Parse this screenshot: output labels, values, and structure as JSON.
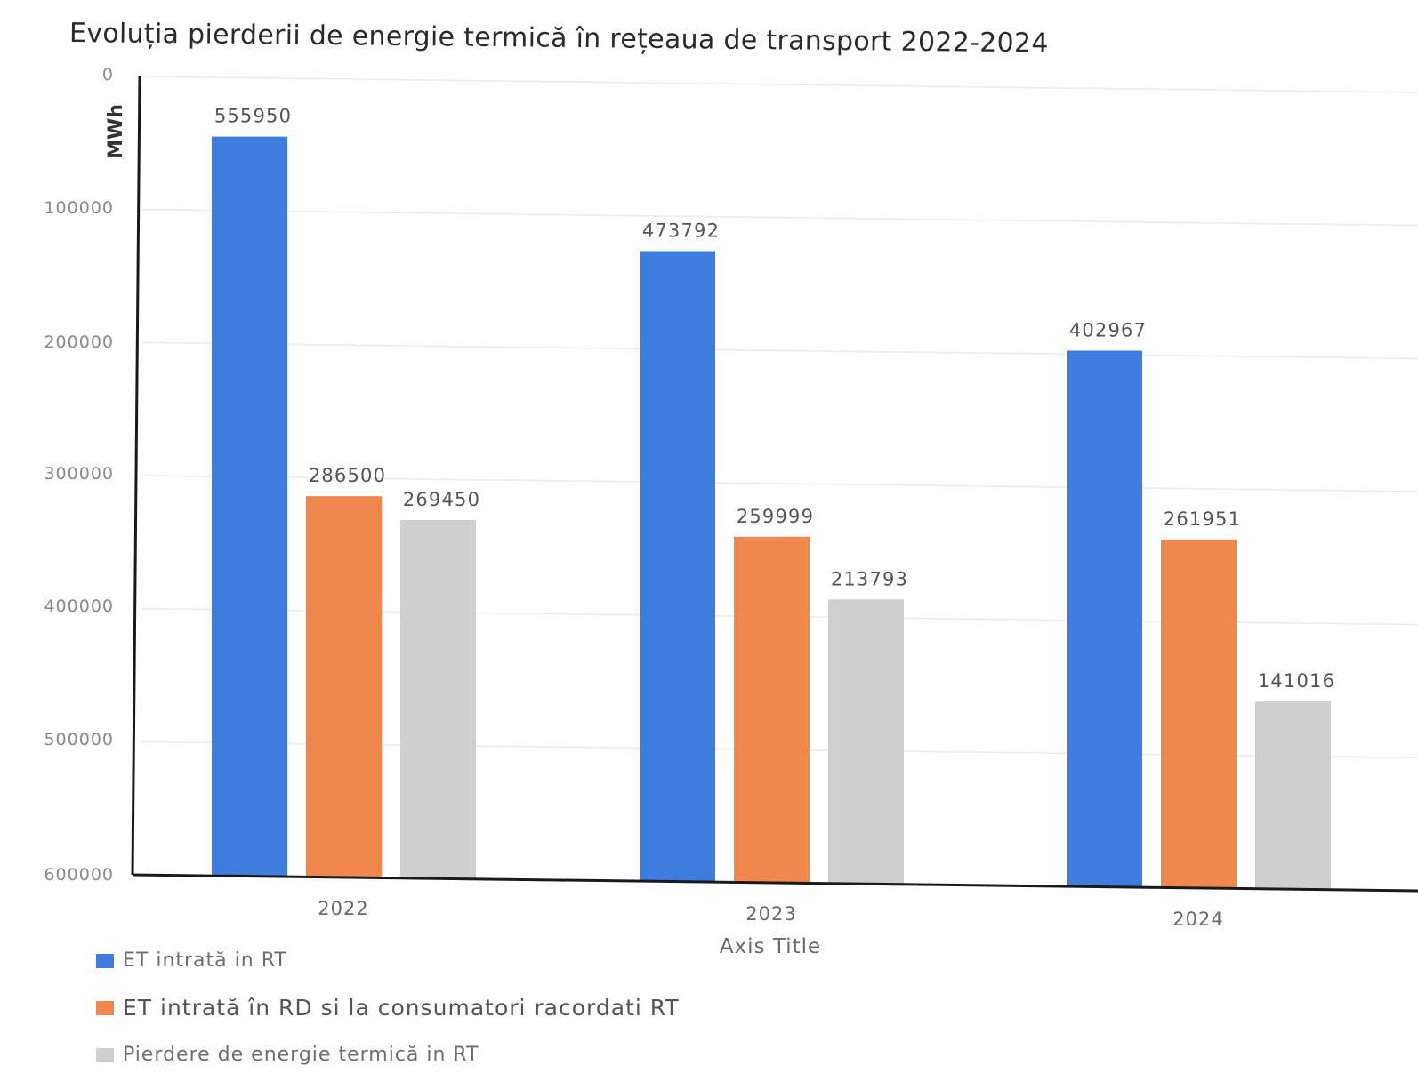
{
  "chart_data": {
    "type": "bar",
    "title": "Evoluția pierderii de energie termică  în rețeaua de transport  2022-2024",
    "ylabel": "MWh",
    "xlabel": "Axis Title",
    "categories": [
      "2022",
      "2023",
      "2024"
    ],
    "ylim": [
      0,
      600000
    ],
    "yticks": [
      0,
      100000,
      200000,
      300000,
      400000,
      500000,
      600000
    ],
    "ytick_labels": [
      "0",
      "100000",
      "200000",
      "300000",
      "400000",
      "500000",
      "600000"
    ],
    "grid": true,
    "legend_position": "bottom-left",
    "series": [
      {
        "name": "ET intrată in RT",
        "color": "#3f7ede",
        "values": [
          555950,
          473792,
          402967
        ]
      },
      {
        "name": "ET intrată în RD si la consumatori racordati RT",
        "color": "#f0874f",
        "values": [
          286500,
          259999,
          261951
        ]
      },
      {
        "name": "Pierdere de energie termică in RT",
        "color": "#cfcfcf",
        "values": [
          269450,
          213793,
          141016
        ]
      }
    ]
  }
}
